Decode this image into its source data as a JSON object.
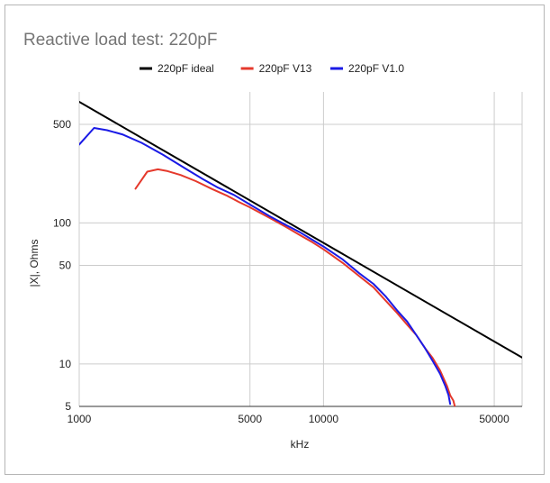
{
  "chart_data": {
    "type": "line",
    "title": "Reactive load test: 220pF",
    "xlabel": "kHz",
    "ylabel": "|X|, Ohms",
    "x_scale": "log",
    "y_scale": "log",
    "xlim": [
      1000,
      65000
    ],
    "ylim": [
      5,
      850
    ],
    "x_ticks": [
      1000,
      5000,
      10000,
      50000
    ],
    "y_ticks": [
      5,
      10,
      50,
      100,
      500
    ],
    "grid": true,
    "legend_position": "top",
    "series": [
      {
        "name": "220pF ideal",
        "color": "#000000",
        "points": [
          [
            1000,
            723
          ],
          [
            65000,
            11.1
          ]
        ]
      },
      {
        "name": "220pF V13",
        "color": "#e5392c",
        "points": [
          [
            1700,
            175
          ],
          [
            1900,
            231
          ],
          [
            2100,
            240
          ],
          [
            2300,
            233
          ],
          [
            2600,
            219
          ],
          [
            3000,
            198
          ],
          [
            3500,
            174
          ],
          [
            4000,
            157
          ],
          [
            4500,
            141
          ],
          [
            5000,
            129
          ],
          [
            6000,
            109
          ],
          [
            7000,
            94
          ],
          [
            8000,
            82
          ],
          [
            9000,
            73
          ],
          [
            10000,
            65
          ],
          [
            12000,
            52
          ],
          [
            14000,
            42
          ],
          [
            16000,
            35
          ],
          [
            18000,
            28
          ],
          [
            20000,
            23
          ],
          [
            22000,
            19
          ],
          [
            24000,
            16
          ],
          [
            26000,
            13
          ],
          [
            28000,
            11
          ],
          [
            30000,
            9
          ],
          [
            32000,
            7
          ],
          [
            33000,
            6
          ],
          [
            34000,
            5.5
          ],
          [
            34500,
            5
          ]
        ]
      },
      {
        "name": "220pF V1.0",
        "color": "#1a1ae6",
        "points": [
          [
            1000,
            360
          ],
          [
            1150,
            472
          ],
          [
            1300,
            455
          ],
          [
            1500,
            425
          ],
          [
            1800,
            370
          ],
          [
            2200,
            305
          ],
          [
            2700,
            245
          ],
          [
            3200,
            205
          ],
          [
            3700,
            178
          ],
          [
            4300,
            158
          ],
          [
            5000,
            135
          ],
          [
            6000,
            112
          ],
          [
            7000,
            97
          ],
          [
            8000,
            86
          ],
          [
            9000,
            76
          ],
          [
            10000,
            68
          ],
          [
            12000,
            55
          ],
          [
            14000,
            44
          ],
          [
            16000,
            37
          ],
          [
            18000,
            30
          ],
          [
            20000,
            24
          ],
          [
            22000,
            20
          ],
          [
            24000,
            16
          ],
          [
            26000,
            13
          ],
          [
            28000,
            10.5
          ],
          [
            30000,
            8.5
          ],
          [
            31500,
            7
          ],
          [
            32500,
            6
          ],
          [
            33000,
            5.2
          ]
        ]
      }
    ]
  }
}
